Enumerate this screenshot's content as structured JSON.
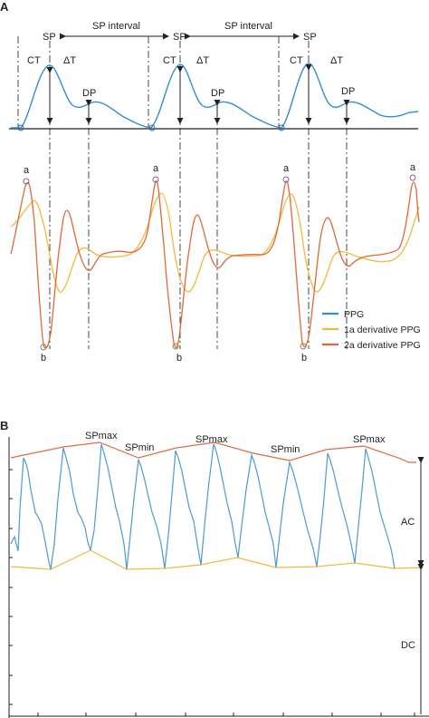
{
  "panel_a": {
    "letter": "A",
    "labels": {
      "sp": "SP",
      "sp_interval": "SP interval",
      "ct": "CT",
      "delta_t": "ΔT",
      "dp": "DP",
      "a": "a",
      "b": "b"
    },
    "legend": [
      {
        "name": "PPG",
        "color": "#2f8fd0"
      },
      {
        "name": "1a derivative PPG",
        "color": "#f5b83a"
      },
      {
        "name": "2a derivative PPG",
        "color": "#e0683a"
      }
    ]
  },
  "panel_b": {
    "letter": "B",
    "labels": {
      "spmax": "SPmax",
      "spmin": "SPmin",
      "ac": "AC",
      "dc": "DC"
    },
    "colors": {
      "signal": "#4a9bd4",
      "upper_envelope": "#e06a45",
      "lower_envelope": "#f5b83a"
    }
  }
}
